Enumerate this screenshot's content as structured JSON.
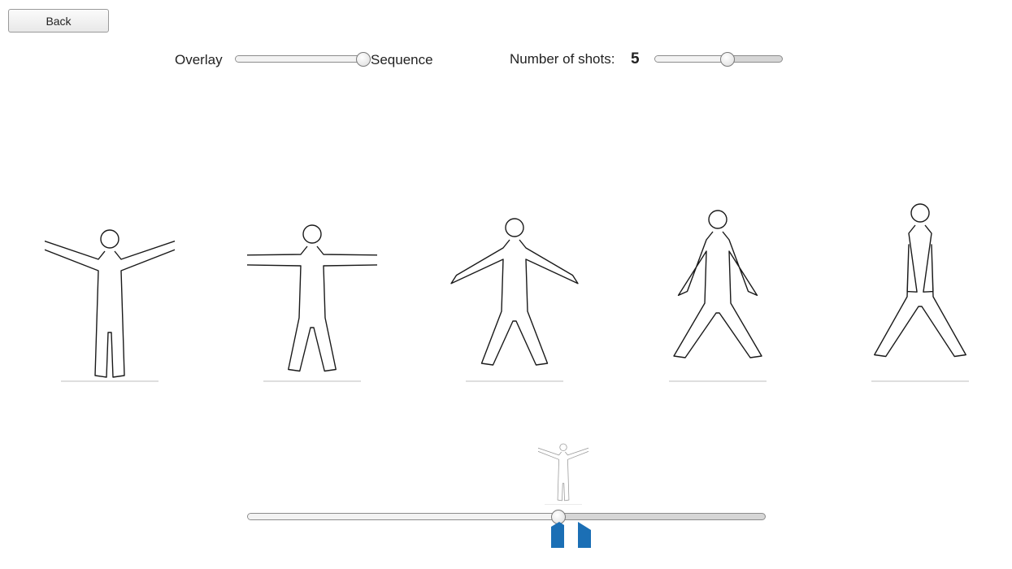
{
  "back_button": {
    "label": "Back"
  },
  "mode_toggle": {
    "left_label": "Overlay",
    "right_label": "Sequence",
    "value": 1.0
  },
  "shots": {
    "label": "Number of shots:",
    "value": "5",
    "slider_value": 0.57
  },
  "frames": [
    {
      "pose": "arms-low",
      "arm": 0.15,
      "leg": 0.0
    },
    {
      "pose": "arms-horizontal",
      "arm": 0.3,
      "leg": 0.25
    },
    {
      "pose": "arms-raised",
      "arm": 0.5,
      "leg": 0.5
    },
    {
      "pose": "arms-up",
      "arm": 0.75,
      "leg": 0.8
    },
    {
      "pose": "arms-overhead",
      "arm": 0.95,
      "leg": 0.85
    }
  ],
  "timeline": {
    "value": 0.6,
    "marker_color": "#1b6fb5"
  }
}
